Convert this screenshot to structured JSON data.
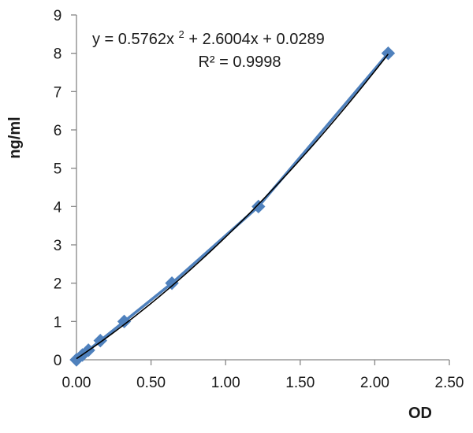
{
  "chart_data": {
    "type": "scatter",
    "title": "",
    "xlabel": "OD",
    "ylabel": "ng/ml",
    "xlim": [
      0,
      2.5
    ],
    "ylim": [
      0,
      9
    ],
    "x_ticks": [
      "0.00",
      "0.50",
      "1.00",
      "1.50",
      "2.00",
      "2.50"
    ],
    "y_ticks": [
      "0",
      "1",
      "2",
      "3",
      "4",
      "5",
      "6",
      "7",
      "8",
      "9"
    ],
    "grid": false,
    "legend": "none",
    "series": [
      {
        "points": [
          {
            "x": 0.0,
            "y": 0.0
          },
          {
            "x": 0.04,
            "y": 0.125
          },
          {
            "x": 0.08,
            "y": 0.25
          },
          {
            "x": 0.16,
            "y": 0.5
          },
          {
            "x": 0.32,
            "y": 1.0
          },
          {
            "x": 0.64,
            "y": 2.0
          },
          {
            "x": 1.22,
            "y": 4.0
          },
          {
            "x": 2.09,
            "y": 8.0
          }
        ],
        "color": "#4f81bd"
      }
    ],
    "trendline": {
      "type": "polynomial",
      "order": 2,
      "coefficients": [
        0.5762,
        2.6004,
        0.0289
      ],
      "x_range": [
        0,
        2.09
      ],
      "color": "#000000"
    },
    "annotations": {
      "equation_main": "y = 0.5762x",
      "equation_sup": "2",
      "equation_rest": " + 2.6004x + 0.0289",
      "r_squared": "R² = 0.9998"
    }
  }
}
